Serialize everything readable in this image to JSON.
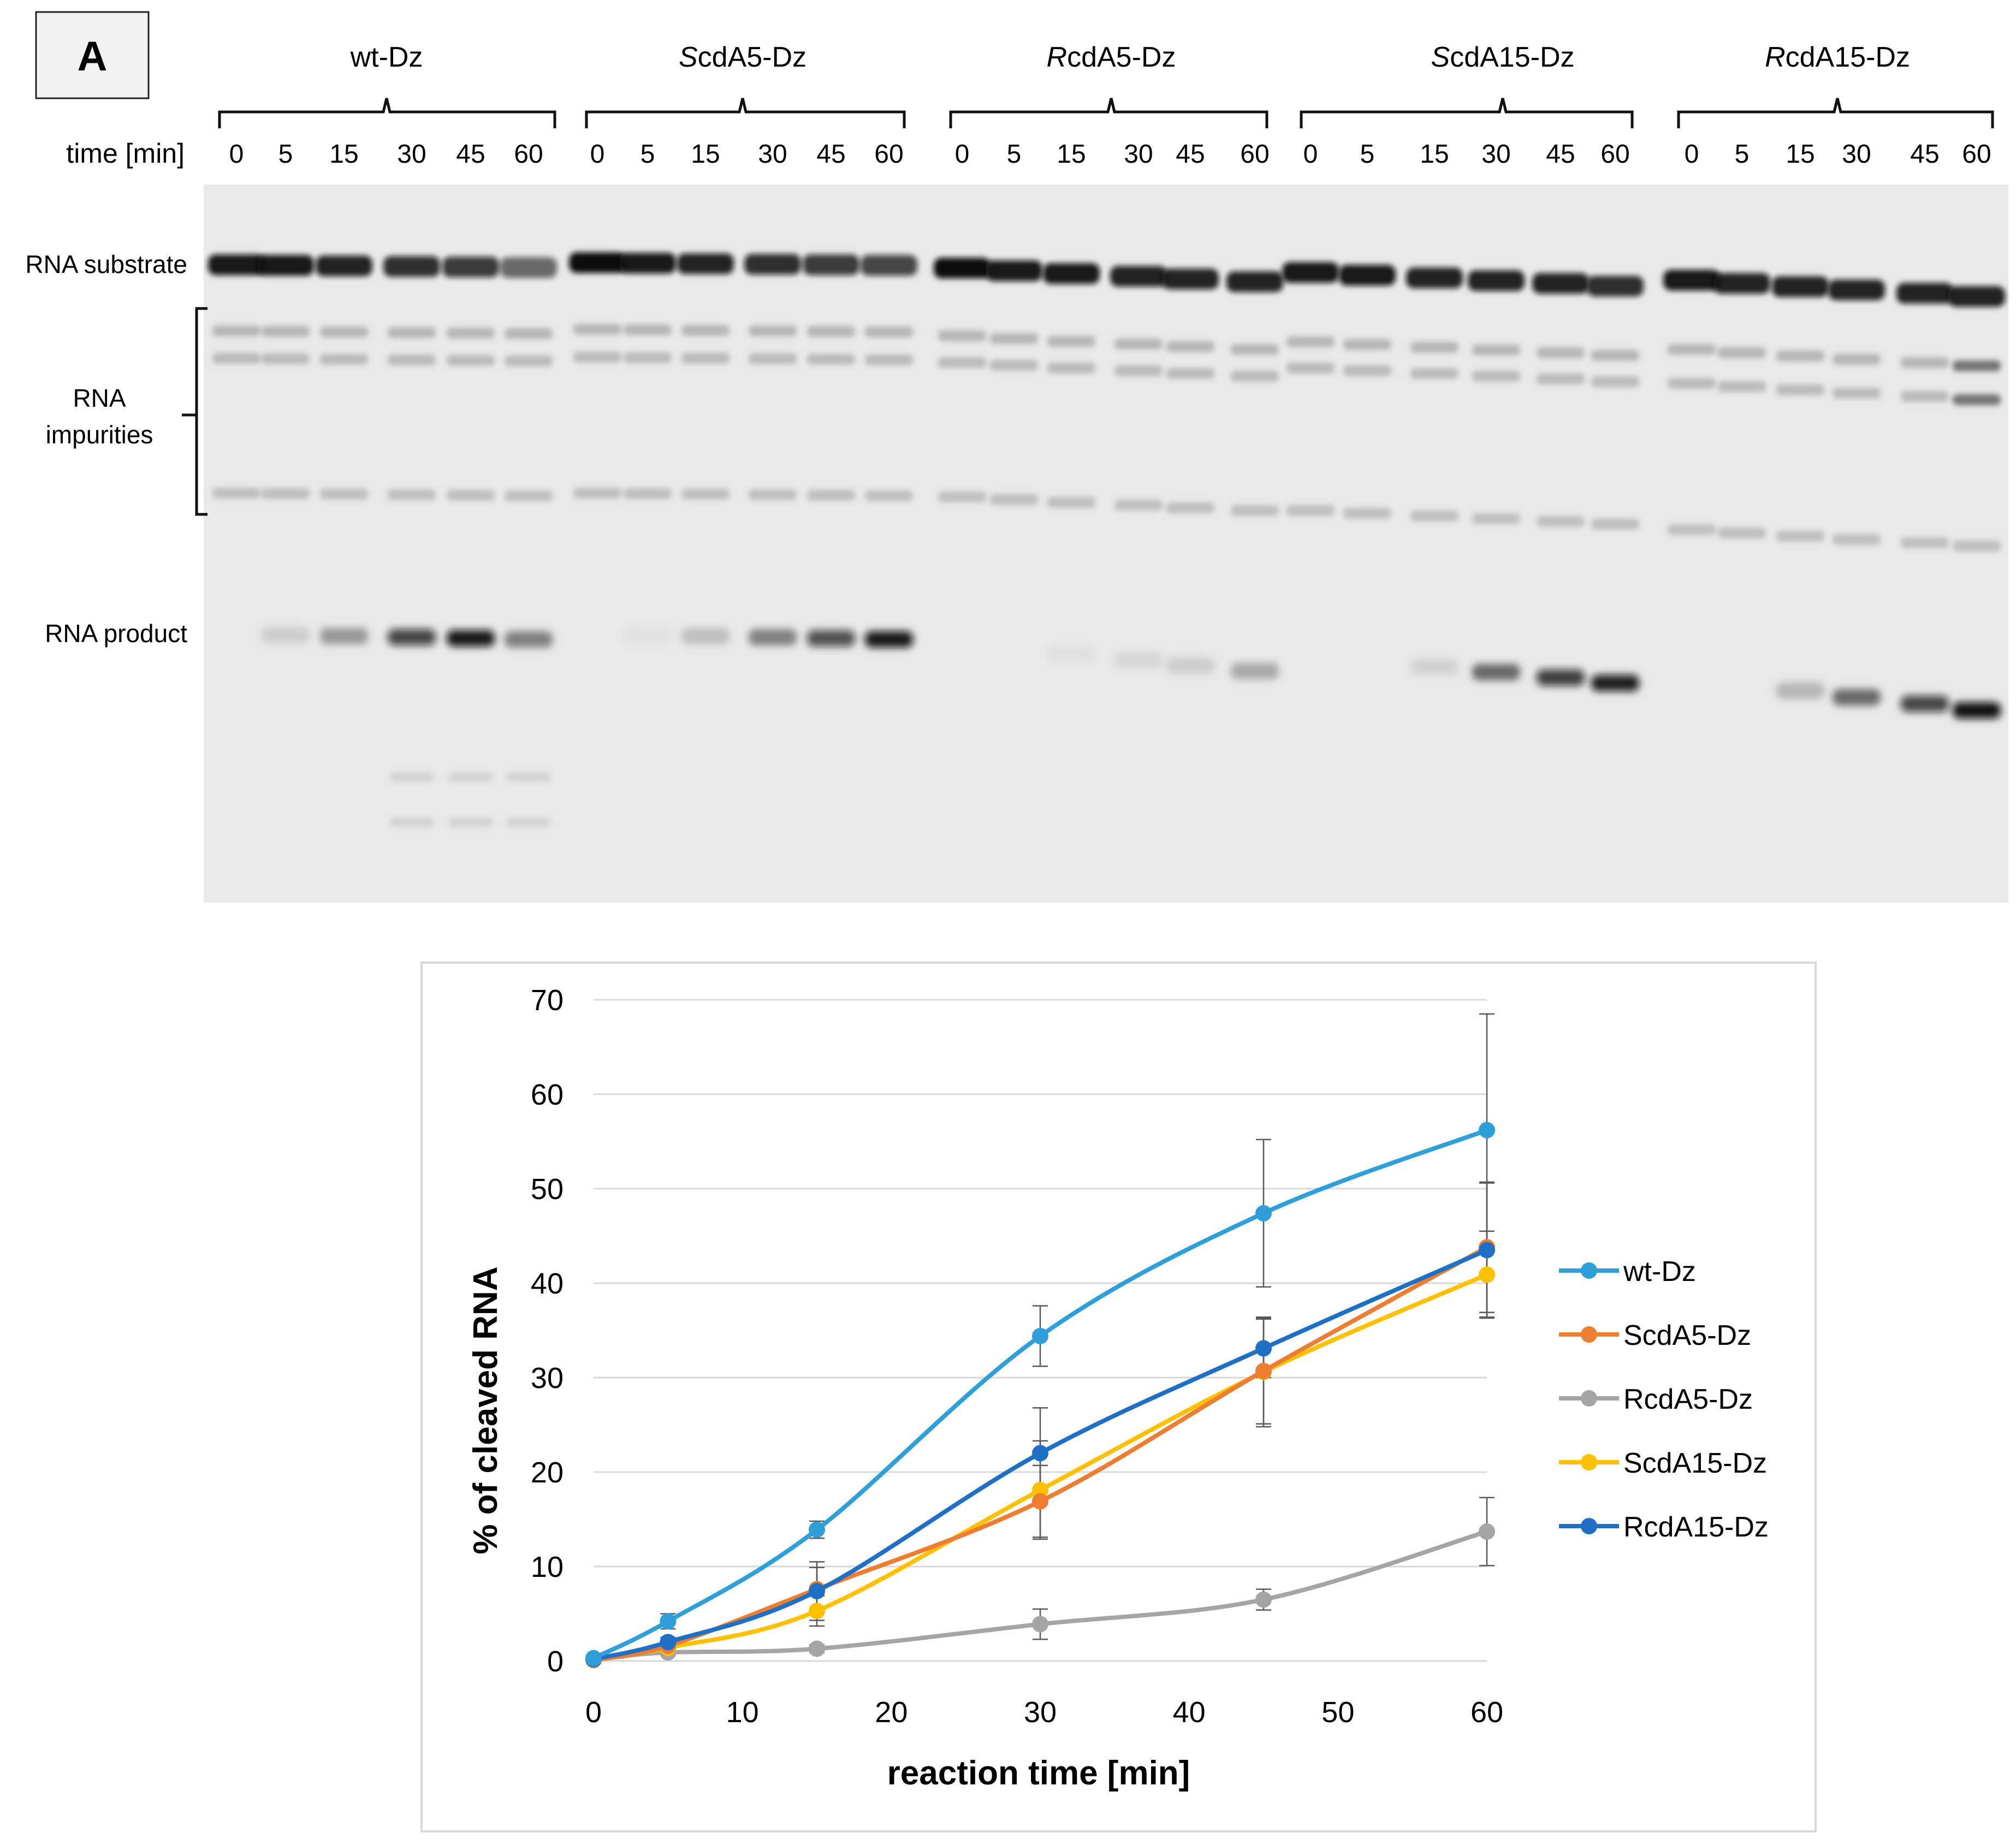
{
  "panel_label": "A",
  "gel": {
    "time_label": "time [min]",
    "time_points": [
      "0",
      "5",
      "15",
      "30",
      "45",
      "60"
    ],
    "groups": [
      {
        "prefix": "",
        "suffix": "wt-Dz"
      },
      {
        "prefix": "S",
        "suffix": "cdA5-Dz"
      },
      {
        "prefix": "R",
        "suffix": "cdA5-Dz"
      },
      {
        "prefix": "S",
        "suffix": "cdA15-Dz"
      },
      {
        "prefix": "R",
        "suffix": "cdA15-Dz"
      }
    ],
    "row_labels": {
      "substrate": "RNA substrate",
      "impurities_line1": "RNA",
      "impurities_line2": "impurities",
      "product": "RNA product"
    },
    "colors": {
      "background": "#e9e9e9",
      "band": "#0b0b0b"
    }
  },
  "chart_data": {
    "type": "line",
    "smooth": true,
    "xlabel": "reaction time [min]",
    "ylabel": "% of cleaved RNA",
    "x": [
      0,
      5,
      15,
      30,
      45,
      60
    ],
    "xlim": [
      0,
      60
    ],
    "ylim": [
      0,
      70
    ],
    "xticks": [
      0,
      10,
      20,
      30,
      40,
      50,
      60
    ],
    "yticks": [
      0,
      10,
      20,
      30,
      40,
      50,
      60,
      70
    ],
    "grid": true,
    "legend": "right",
    "series": [
      {
        "name": "wt-Dz",
        "color": "#2e9fd9",
        "values": [
          0.3,
          4.2,
          13.9,
          34.4,
          47.4,
          56.2
        ],
        "errors": [
          0.3,
          0.8,
          0.9,
          3.2,
          7.8,
          12.3
        ]
      },
      {
        "name": "ScdA5-Dz",
        "color": "#ed7d31",
        "values": [
          0.1,
          1.6,
          7.6,
          16.9,
          30.7,
          43.8
        ],
        "errors": [
          0.1,
          0.4,
          2.3,
          3.8,
          5.6,
          6.9
        ]
      },
      {
        "name": "RcdA5-Dz",
        "color": "#a5a5a5",
        "values": [
          0.2,
          0.9,
          1.3,
          3.9,
          6.5,
          13.7
        ],
        "errors": [
          0.1,
          0.3,
          0.4,
          1.6,
          1.1,
          3.6
        ]
      },
      {
        "name": "ScdA15-Dz",
        "color": "#ffc000",
        "values": [
          0.1,
          1.4,
          5.3,
          18.1,
          30.6,
          40.9
        ],
        "errors": [
          0.1,
          0.4,
          1.6,
          5.2,
          5.8,
          4.6
        ]
      },
      {
        "name": "RcdA15-Dz",
        "color": "#1f6fc5",
        "values": [
          0.2,
          2.0,
          7.4,
          22.0,
          33.1,
          43.5
        ],
        "errors": [
          0.1,
          0.5,
          3.1,
          4.8,
          3.1,
          7.1
        ]
      }
    ]
  }
}
